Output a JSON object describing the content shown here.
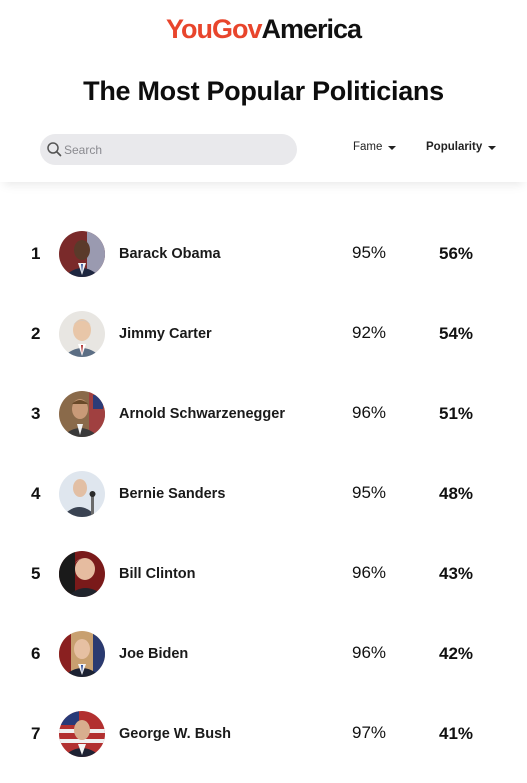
{
  "header": {
    "logo_you": "YouGov",
    "logo_america": "America",
    "title": "The Most Popular Politicians"
  },
  "search": {
    "placeholder": "Search",
    "icon": "search-icon"
  },
  "sort": {
    "fame_label": "Fame",
    "popularity_label": "Popularity",
    "active": "Popularity"
  },
  "colors": {
    "brand_red": "#e8452c",
    "search_bg": "#e9e9ec",
    "text": "#111111"
  },
  "rows": [
    {
      "rank": "1",
      "name": "Barack Obama",
      "fame": "95%",
      "popularity": "56%"
    },
    {
      "rank": "2",
      "name": "Jimmy Carter",
      "fame": "92%",
      "popularity": "54%"
    },
    {
      "rank": "3",
      "name": "Arnold Schwarzenegger",
      "fame": "96%",
      "popularity": "51%"
    },
    {
      "rank": "4",
      "name": "Bernie Sanders",
      "fame": "95%",
      "popularity": "48%"
    },
    {
      "rank": "5",
      "name": "Bill Clinton",
      "fame": "96%",
      "popularity": "43%"
    },
    {
      "rank": "6",
      "name": "Joe Biden",
      "fame": "96%",
      "popularity": "42%"
    },
    {
      "rank": "7",
      "name": "George W. Bush",
      "fame": "97%",
      "popularity": "41%"
    }
  ]
}
